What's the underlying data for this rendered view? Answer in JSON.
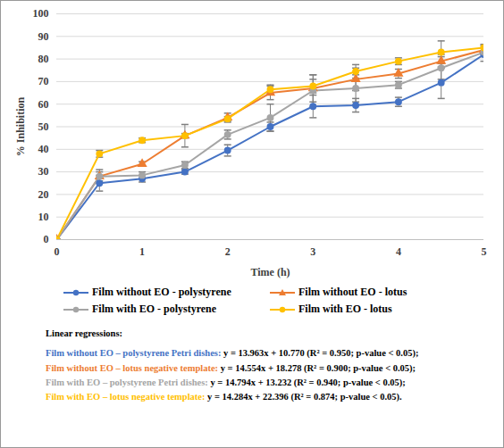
{
  "chart_data": {
    "type": "line",
    "x_label": "Time (h)",
    "y_label": "% Inhibition",
    "x": [
      0,
      0.5,
      1,
      1.5,
      2,
      2.5,
      3,
      3.5,
      4,
      4.5,
      5
    ],
    "xlim": [
      0,
      5
    ],
    "xticks": [
      0,
      1,
      2,
      3,
      4,
      5
    ],
    "ylim": [
      0,
      100
    ],
    "yticks": [
      0,
      10,
      20,
      30,
      40,
      50,
      60,
      70,
      80,
      90,
      100
    ],
    "grid": true,
    "legend": "bottom",
    "regression_title": "Linear regressions:",
    "series": [
      {
        "name": "Film without EO - polystyrene",
        "color": "#4472c4",
        "marker": "circle",
        "values": [
          0,
          25,
          27,
          30,
          39.5,
          50,
          59,
          59.5,
          61,
          69.5,
          82
        ],
        "errors": [
          0,
          3.5,
          1.5,
          1,
          2.5,
          2,
          5,
          3,
          2,
          7,
          3
        ],
        "regression_label": "Film without EO – polystyrene Petri dishes:",
        "regression": "y = 13.963x + 10.770 (R² = 0.950; p-value < 0.05);"
      },
      {
        "name": "Film without EO - lotus",
        "color": "#ed7d31",
        "marker": "triangle",
        "values": [
          0,
          28,
          33.5,
          46,
          54,
          65,
          67,
          71,
          73.5,
          79,
          84
        ],
        "errors": [
          0,
          2,
          1,
          5,
          2,
          3,
          6,
          5,
          2,
          3,
          2
        ],
        "regression_label": "Film without EO – lotus negative template:",
        "regression": "y = 14.554x + 18.278 (R² = 0.900; p-value < 0.05);"
      },
      {
        "name": "Film with EO - polystyrene",
        "color": "#a5a5a5",
        "marker": "circle",
        "values": [
          0,
          28,
          28.5,
          33,
          46.5,
          54,
          66,
          67,
          68.5,
          76,
          83
        ],
        "errors": [
          0,
          3,
          1.5,
          1.5,
          2,
          6,
          7,
          6,
          1.5,
          5,
          2
        ],
        "regression_label": "Film with EO – polystyrene Petri dishes:",
        "regression": "y = 14.794x + 13.232 (R² = 0.940; p-value < 0.05);"
      },
      {
        "name": "Film with EO - lotus",
        "color": "#ffc000",
        "marker": "circle",
        "values": [
          0,
          38,
          44,
          46,
          53.5,
          66.5,
          68,
          74.5,
          79,
          83,
          85
        ],
        "errors": [
          0,
          1.5,
          1,
          1,
          1,
          2,
          3,
          3,
          1.5,
          5,
          1.5
        ],
        "regression_label": "Film with EO – lotus negative template:",
        "regression": "y = 14.284x + 22.396 (R² = 0.874; p-value < 0.05)."
      }
    ]
  }
}
